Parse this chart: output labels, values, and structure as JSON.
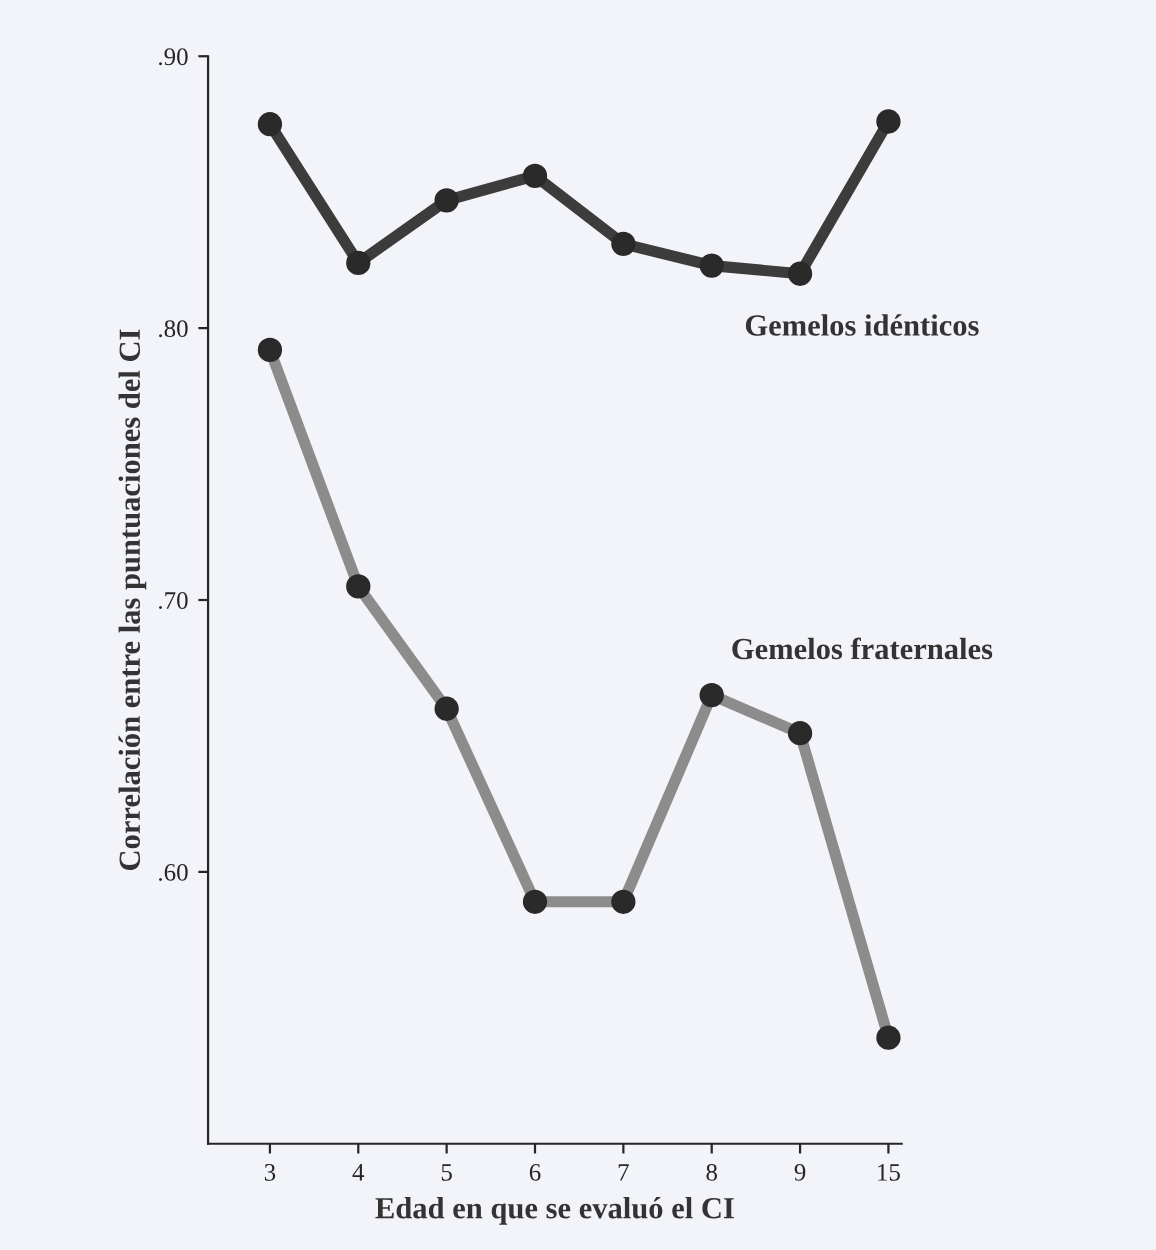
{
  "chart_data": {
    "type": "line",
    "xlabel": "Edad en que se evaluó el CI",
    "ylabel": "Correlación entre las puntuaciones del CI",
    "categories": [
      "3",
      "4",
      "5",
      "6",
      "7",
      "8",
      "9",
      "15"
    ],
    "series": [
      {
        "name": "Gemelos idénticos",
        "color": "#3c3c3c",
        "values": [
          0.875,
          0.824,
          0.847,
          0.856,
          0.831,
          0.823,
          0.82,
          0.876
        ]
      },
      {
        "name": "Gemelos fraternales",
        "color": "#8c8c8c",
        "values": [
          0.792,
          0.705,
          0.66,
          0.589,
          0.589,
          0.665,
          0.651,
          0.539
        ]
      }
    ],
    "ylim": [
      0.5,
      0.9
    ],
    "yticks": [
      {
        "value": 0.6,
        "label": ".60"
      },
      {
        "value": 0.7,
        "label": ".70"
      },
      {
        "value": 0.8,
        "label": ".80"
      },
      {
        "value": 0.9,
        "label": ".90"
      }
    ],
    "marker": "circle",
    "line_style": "solid",
    "grid": false,
    "legend": false
  }
}
